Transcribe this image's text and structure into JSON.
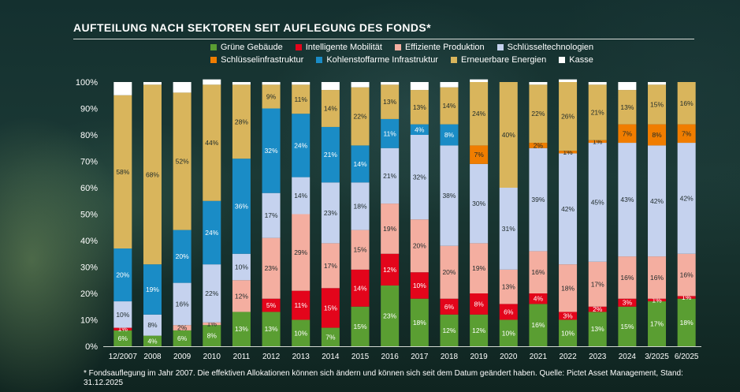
{
  "title": "AUFTEILUNG NACH SEKTOREN SEIT AUFLEGUNG DES FONDS*",
  "footnote": "* Fondsauflegung im Jahr 2007. Die effektiven Allokationen können sich ändern und können sich seit dem Datum geändert haben. Quelle: Pictet Asset Management, Stand: 31.12.2025",
  "chart_data": {
    "type": "bar",
    "stacked": true,
    "orientation": "vertical",
    "ylim": [
      0,
      100
    ],
    "yticks": [
      "0%",
      "10%",
      "20%",
      "30%",
      "40%",
      "50%",
      "60%",
      "70%",
      "80%",
      "90%",
      "100%"
    ],
    "legend_position": "top",
    "categories": [
      "12/2007",
      "2008",
      "2009",
      "2010",
      "2011",
      "2012",
      "2013",
      "2014",
      "2015",
      "2016",
      "2017",
      "2018",
      "2019",
      "2020",
      "2021",
      "2022",
      "2023",
      "2024",
      "3/2025",
      "6/2025"
    ],
    "series": [
      {
        "name": "Grüne Gebäude",
        "color": "#5a9e32",
        "values": [
          6,
          4,
          6,
          8,
          13,
          13,
          10,
          7,
          15,
          23,
          18,
          12,
          12,
          10,
          16,
          10,
          13,
          15,
          17,
          18
        ],
        "labels": [
          "6%",
          "4%",
          "6%",
          "8%",
          "13%",
          "13%",
          "10%",
          "7%",
          "15%",
          "23%",
          "18%",
          "12%",
          "12%",
          "10%",
          "16%",
          "10%",
          "13%",
          "15%",
          "17%",
          "18%"
        ]
      },
      {
        "name": "Intelligente Mobilität",
        "color": "#e3051b",
        "values": [
          1,
          0,
          0,
          0,
          0,
          5,
          11,
          15,
          14,
          12,
          10,
          6,
          8,
          6,
          4,
          3,
          2,
          3,
          1,
          1
        ],
        "labels": [
          "1%",
          "",
          "",
          "",
          "",
          "5%",
          "11%",
          "15%",
          "14%",
          "12%",
          "10%",
          "6%",
          "8%",
          "6%",
          "4%",
          "3%",
          "2%",
          "3%",
          "1%",
          "1%"
        ]
      },
      {
        "name": "Effiziente Produktion",
        "color": "#f4aea0",
        "values": [
          0,
          0,
          2,
          1,
          12,
          23,
          29,
          17,
          15,
          19,
          20,
          20,
          19,
          13,
          16,
          18,
          17,
          16,
          16,
          16
        ],
        "labels": [
          "",
          "",
          "2%",
          "1%",
          "12%",
          "23%",
          "29%",
          "17%",
          "15%",
          "19%",
          "20%",
          "20%",
          "19%",
          "13%",
          "16%",
          "18%",
          "17%",
          "16%",
          "16%",
          "16%"
        ]
      },
      {
        "name": "Schlüsseltechnologien",
        "color": "#c5d2ee",
        "values": [
          10,
          8,
          16,
          22,
          10,
          17,
          14,
          23,
          18,
          21,
          32,
          38,
          30,
          31,
          39,
          42,
          45,
          43,
          42,
          42
        ],
        "labels": [
          "10%",
          "8%",
          "16%",
          "22%",
          "10%",
          "17%",
          "14%",
          "23%",
          "18%",
          "21%",
          "32%",
          "38%",
          "30%",
          "31%",
          "39%",
          "42%",
          "45%",
          "43%",
          "42%",
          "42%"
        ]
      },
      {
        "name": "Schlüsselinfrastruktur",
        "color": "#f07d00",
        "values": [
          0,
          0,
          0,
          0,
          0,
          0,
          0,
          0,
          0,
          0,
          0,
          0,
          7,
          0,
          2,
          1,
          1,
          7,
          8,
          7
        ],
        "labels": [
          "",
          "",
          "",
          "",
          "",
          "",
          "",
          "",
          "",
          "",
          "",
          "",
          "7%",
          "",
          "2%",
          "1%",
          "1%",
          "7%",
          "8%",
          "7%"
        ]
      },
      {
        "name": "Kohlenstoffarme Infrastruktur",
        "color": "#1a8cc6",
        "values": [
          20,
          19,
          20,
          24,
          36,
          32,
          24,
          21,
          14,
          11,
          4,
          8,
          0,
          0,
          0,
          0,
          0,
          0,
          0,
          0
        ],
        "labels": [
          "20%",
          "19%",
          "20%",
          "24%",
          "36%",
          "32%",
          "24%",
          "21%",
          "14%",
          "11%",
          "4%",
          "8%",
          "",
          "",
          "",
          "",
          "",
          "",
          "",
          ""
        ]
      },
      {
        "name": "Erneuerbare Energien",
        "color": "#d9b55c",
        "values": [
          58,
          68,
          52,
          44,
          28,
          9,
          11,
          14,
          22,
          13,
          13,
          14,
          24,
          40,
          22,
          26,
          21,
          13,
          15,
          16
        ],
        "labels": [
          "58%",
          "68%",
          "52%",
          "44%",
          "28%",
          "9%",
          "11%",
          "14%",
          "22%",
          "13%",
          "13%",
          "14%",
          "24%",
          "40%",
          "22%",
          "26%",
          "21%",
          "13%",
          "15%",
          "16%"
        ]
      },
      {
        "name": "Kasse",
        "color": "#ffffff",
        "values": [
          5,
          1,
          4,
          2,
          1,
          1,
          1,
          3,
          2,
          1,
          3,
          2,
          1,
          0,
          1,
          1,
          1,
          3,
          1,
          0
        ],
        "labels": [
          "",
          "",
          "",
          "",
          "",
          "",
          "",
          "",
          "",
          "",
          "",
          "",
          "",
          "",
          "",
          "",
          "",
          "",
          "",
          ""
        ]
      }
    ]
  }
}
